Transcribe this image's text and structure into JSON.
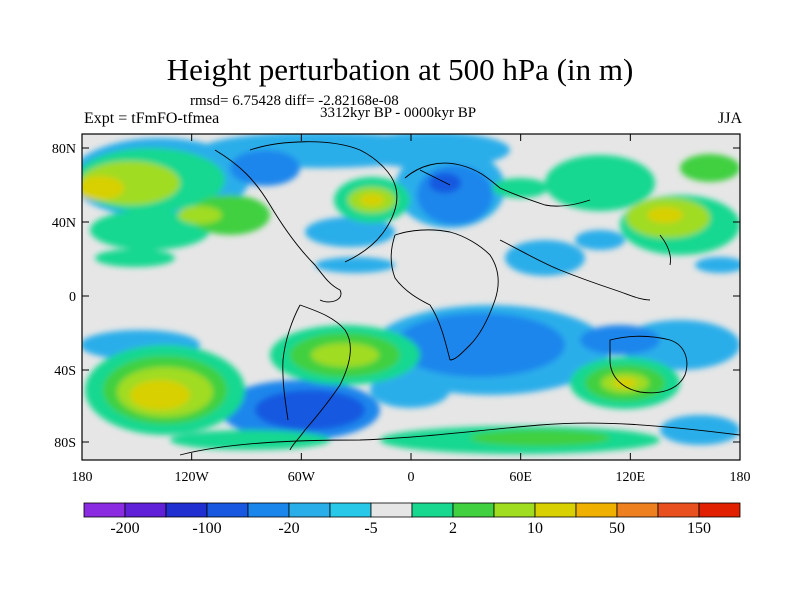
{
  "title": "Height perturbation at 500 hPa (in m)",
  "stats_line": "rmsd= 6.75428 diff= -2.82168e-08",
  "period": "3312kyr BP - 0000kyr BP",
  "experiment": "Expt = tFmFO-tfmea",
  "season": "JJA",
  "map": {
    "lat_ticks": [
      "80N",
      "40N",
      "0",
      "40S",
      "80S"
    ],
    "lon_ticks": [
      "180",
      "120W",
      "60W",
      "0",
      "60E",
      "120E",
      "180"
    ],
    "background_color": "#e6e6e6"
  },
  "colorbar": {
    "labels": [
      "-200",
      "-100",
      "-20",
      "-5",
      "2",
      "10",
      "50",
      "150"
    ],
    "colors": [
      "#8a2be2",
      "#6020d8",
      "#2030d0",
      "#1858e0",
      "#1a86ec",
      "#29aeea",
      "#28c8e8",
      "#e6e6e6",
      "#18d890",
      "#40d040",
      "#a0dc20",
      "#d8d000",
      "#f0b000",
      "#ee8020",
      "#e85020",
      "#e02000"
    ]
  }
}
